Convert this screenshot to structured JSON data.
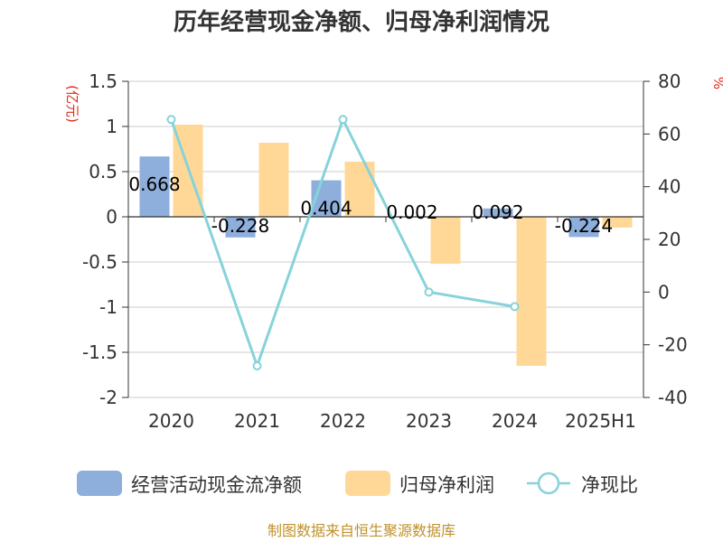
{
  "chart_data": {
    "type": "bar",
    "title": "历年经营现金净额、归母净利润情况",
    "categories": [
      "2020",
      "2021",
      "2022",
      "2023",
      "2024",
      "2025H1"
    ],
    "y_left": {
      "unit": "(亿元)",
      "ylim": [
        -2,
        1.5
      ],
      "ticks": [
        "1.5",
        "1",
        "0.5",
        "0",
        "-0.5",
        "-1",
        "-1.5",
        "-2"
      ]
    },
    "y_right": {
      "unit": "%",
      "ylim": [
        -40,
        80
      ],
      "ticks": [
        "80",
        "60",
        "40",
        "20",
        "0",
        "-20",
        "-40"
      ]
    },
    "series": [
      {
        "name": "经营活动现金流净额",
        "type": "bar",
        "axis": "left",
        "color": "#8eaedb",
        "values": [
          0.668,
          -0.228,
          0.404,
          0.002,
          0.092,
          -0.224
        ],
        "labels": [
          "0.668",
          "-0.228",
          "0.404",
          "0.002",
          "0.092",
          "-0.224"
        ]
      },
      {
        "name": "归母净利润",
        "type": "bar",
        "axis": "left",
        "color": "#ffd898",
        "values": [
          1.02,
          0.82,
          0.61,
          -0.52,
          -1.65,
          -0.12
        ]
      },
      {
        "name": "净现比",
        "type": "line",
        "axis": "right",
        "color": "#86d3da",
        "values": [
          65.5,
          -28,
          65.5,
          0,
          -5.5,
          null
        ]
      }
    ],
    "grid": true,
    "legend": "bottom"
  },
  "footer": {
    "source": "制图数据来自恒生聚源数据库"
  }
}
